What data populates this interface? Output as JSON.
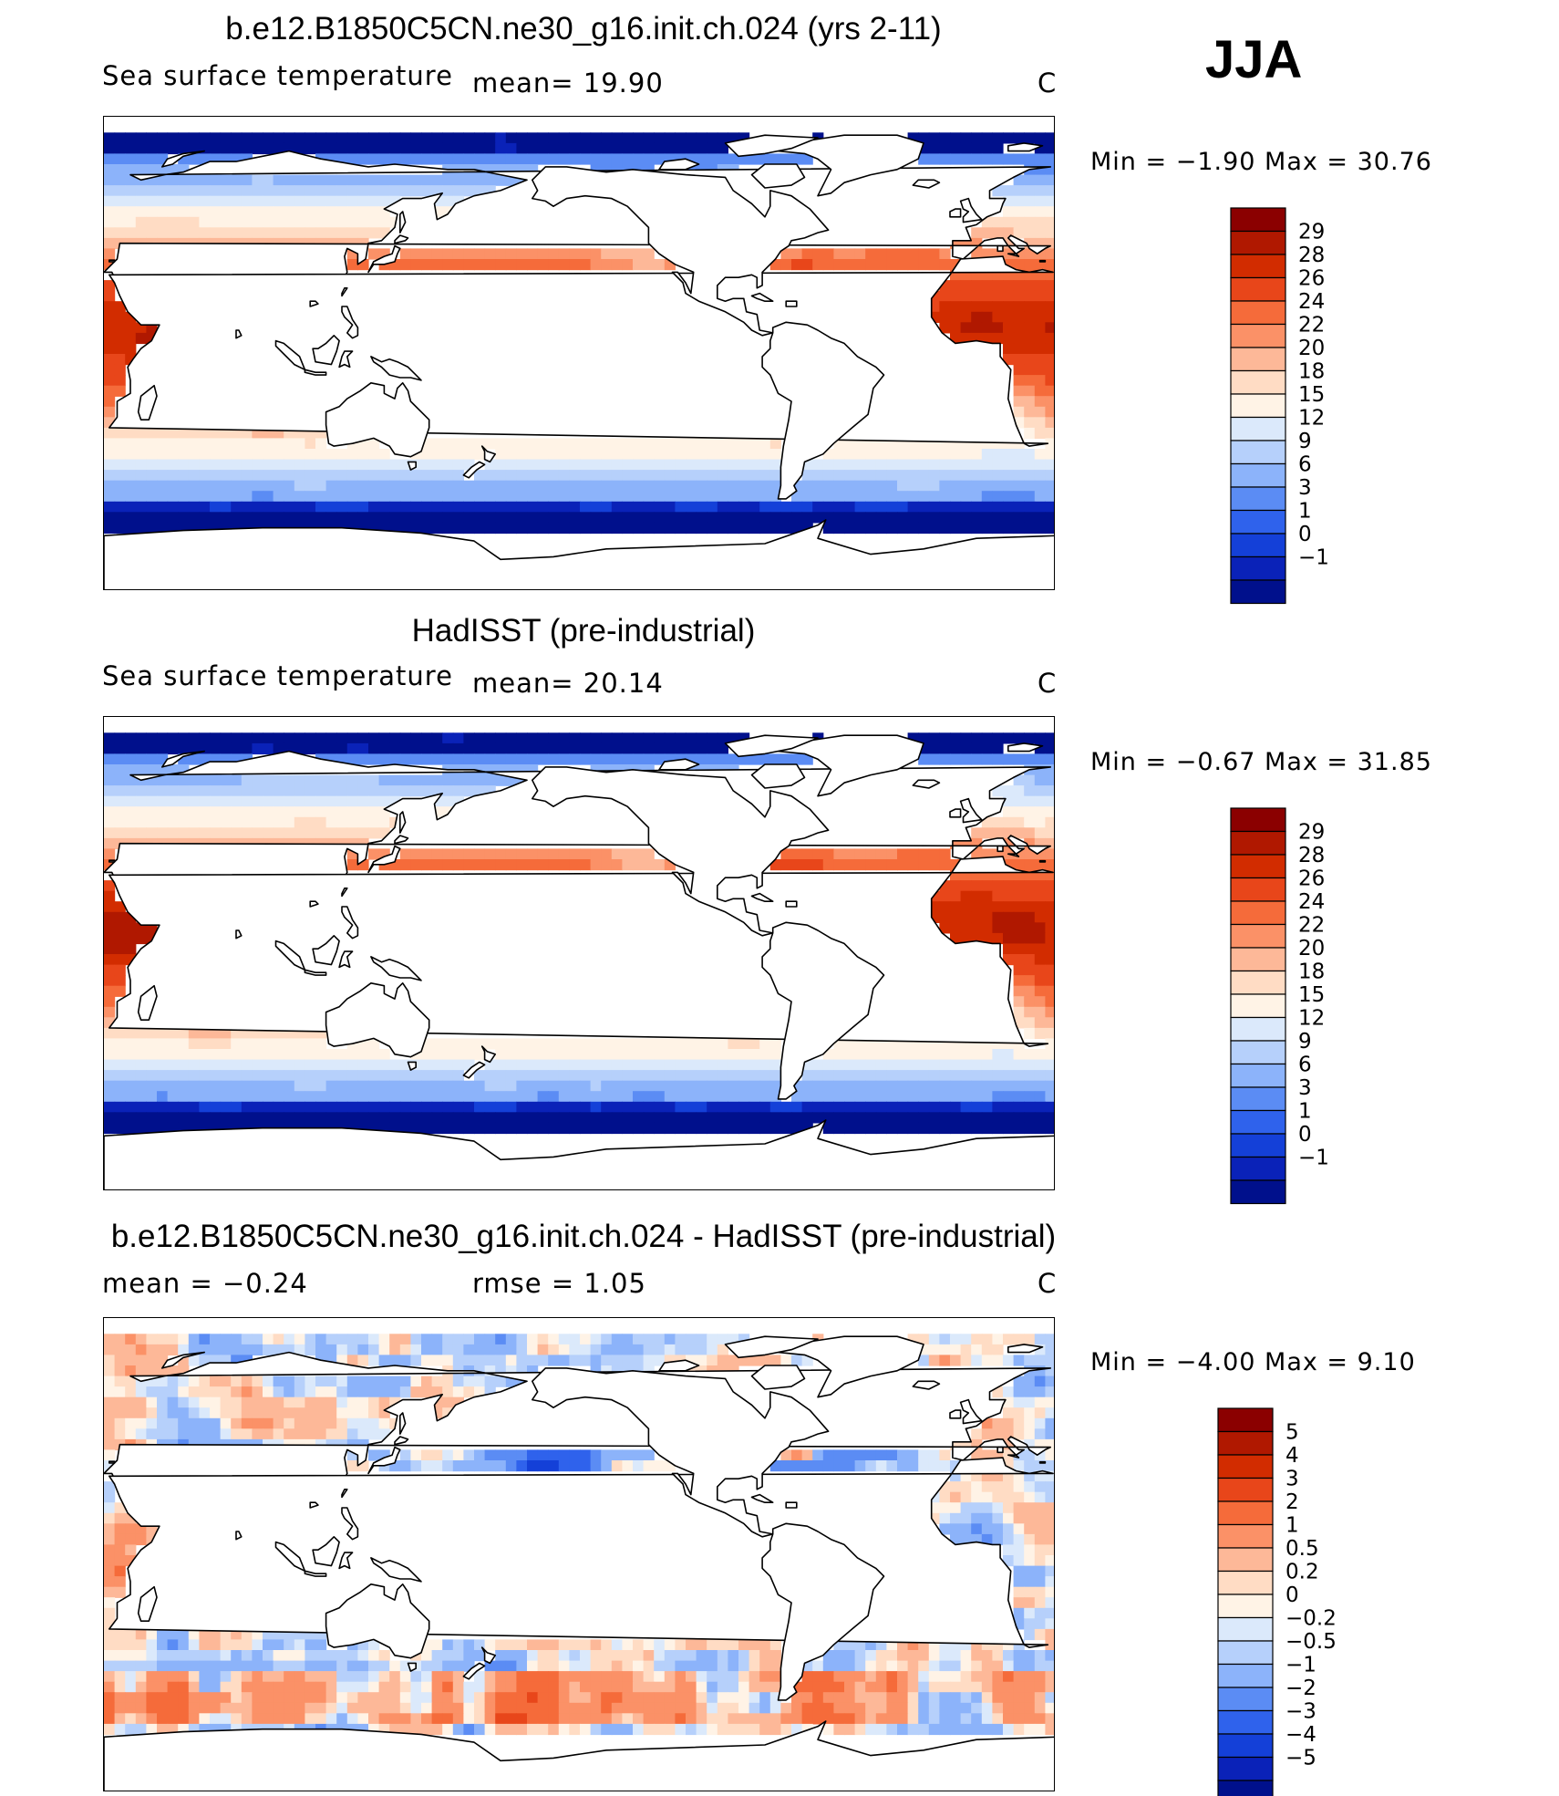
{
  "season": "JJA",
  "panels": [
    {
      "title": "b.e12.B1850C5CN.ne30_g16.init.ch.024 (yrs 2-11)",
      "variable": "Sea surface temperature",
      "stat1": "mean=   19.90",
      "stat2": "",
      "units": "C",
      "minmax": "Min =   −1.90 Max =   30.76",
      "colorbar_labels": [
        "29",
        "28",
        "26",
        "24",
        "22",
        "20",
        "18",
        "15",
        "12",
        "9",
        "6",
        "3",
        "1",
        "0",
        "−1"
      ],
      "colorbar_colors": [
        "#8b0000",
        "#b01800",
        "#d22c00",
        "#e8461a",
        "#f56b3a",
        "#fb9167",
        "#fdb898",
        "#ffdcc4",
        "#fff3e6",
        "#dbe9fb",
        "#b6d0fb",
        "#8cb3fa",
        "#5b8cf4",
        "#2f62ec",
        "#1440d8",
        "#0a22b8",
        "#00108c"
      ]
    },
    {
      "title": "HadISST (pre-industrial)",
      "variable": "Sea surface temperature",
      "stat1": "mean=   20.14",
      "stat2": "",
      "units": "C",
      "minmax": "Min =   −0.67 Max =   31.85",
      "colorbar_labels": [
        "29",
        "28",
        "26",
        "24",
        "22",
        "20",
        "18",
        "15",
        "12",
        "9",
        "6",
        "3",
        "1",
        "0",
        "−1"
      ],
      "colorbar_colors": [
        "#8b0000",
        "#b01800",
        "#d22c00",
        "#e8461a",
        "#f56b3a",
        "#fb9167",
        "#fdb898",
        "#ffdcc4",
        "#fff3e6",
        "#dbe9fb",
        "#b6d0fb",
        "#8cb3fa",
        "#5b8cf4",
        "#2f62ec",
        "#1440d8",
        "#0a22b8",
        "#00108c"
      ]
    },
    {
      "title": "b.e12.B1850C5CN.ne30_g16.init.ch.024 - HadISST (pre-industrial)",
      "variable": "mean =   −0.24",
      "stat1": "rmse =    1.05",
      "stat2": "",
      "units": "C",
      "minmax": "Min =   −4.00 Max =    9.10",
      "colorbar_labels": [
        "5",
        "4",
        "3",
        "2",
        "1",
        "0.5",
        "0.2",
        "0",
        "−0.2",
        "−0.5",
        "−1",
        "−2",
        "−3",
        "−4",
        "−5"
      ],
      "colorbar_colors": [
        "#8b0000",
        "#b01800",
        "#d22c00",
        "#e8461a",
        "#f56b3a",
        "#fb9167",
        "#fdb898",
        "#ffdcc4",
        "#fff3e6",
        "#dbe9fb",
        "#b6d0fb",
        "#8cb3fa",
        "#5b8cf4",
        "#2f62ec",
        "#1440d8",
        "#0a22b8",
        "#00108c"
      ]
    }
  ]
}
